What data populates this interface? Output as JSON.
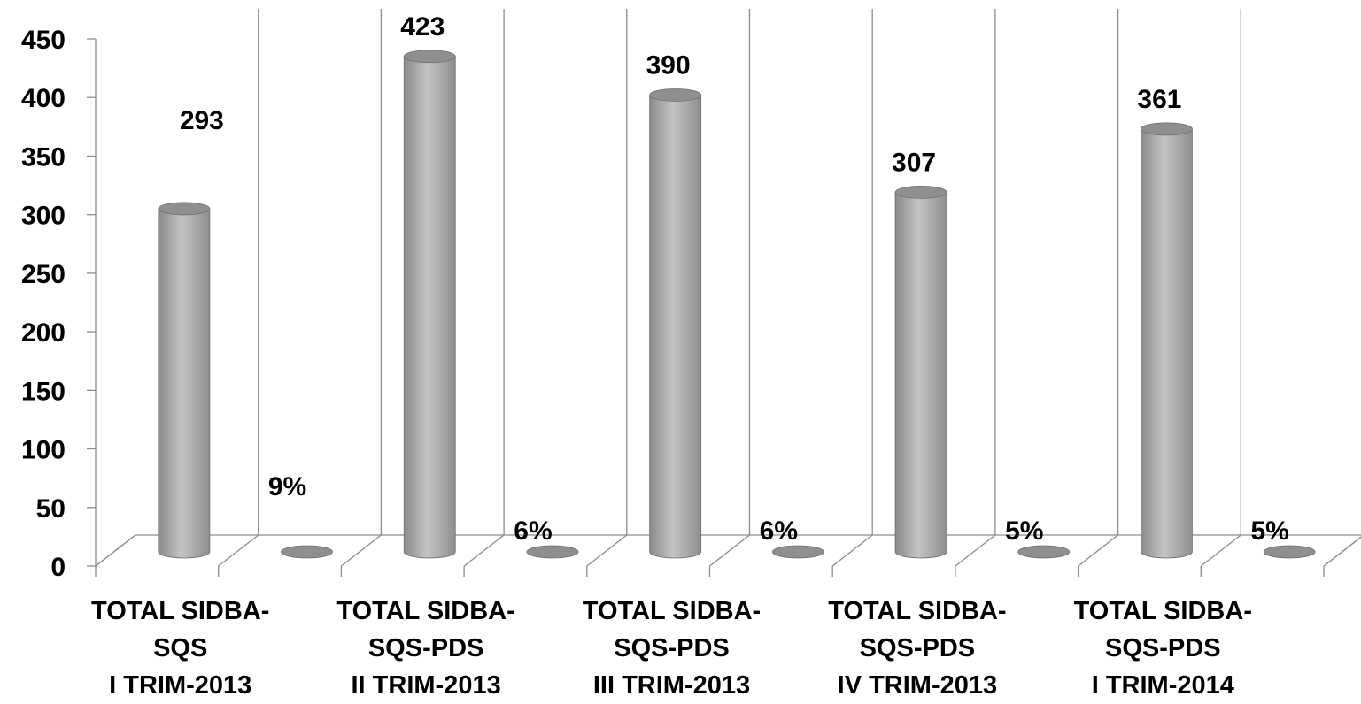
{
  "chart_data": {
    "type": "bar",
    "style": "3d-cylinder",
    "categories": [
      [
        "TOTAL SIDBA-",
        "SQS",
        "I TRIM-2013"
      ],
      [
        "TOTAL SIDBA-",
        "SQS-PDS",
        "II TRIM-2013"
      ],
      [
        "TOTAL SIDBA-",
        "SQS-PDS",
        "III TRIM-2013"
      ],
      [
        "TOTAL SIDBA-",
        "SQS-PDS",
        "IV TRIM-2013"
      ],
      [
        "TOTAL SIDBA-",
        "SQS-PDS",
        "I TRIM-2014"
      ]
    ],
    "series": [
      {
        "values": [
          293,
          423,
          390,
          307,
          361
        ],
        "labels": [
          "293",
          "423",
          "390",
          "307",
          "361"
        ]
      },
      {
        "values": [
          0.09,
          0.06,
          0.06,
          0.05,
          0.05
        ],
        "labels": [
          "9%",
          "6%",
          "6%",
          "5%",
          "5%"
        ]
      }
    ],
    "yticks": [
      "0",
      "50",
      "100",
      "150",
      "200",
      "250",
      "300",
      "350",
      "400",
      "450"
    ],
    "ylim": [
      0,
      450
    ],
    "grid": "vertical",
    "legend": "none",
    "colors": {
      "bar": "#9a9a9a",
      "grid": "#8c8c8c",
      "text": "#000000"
    }
  }
}
